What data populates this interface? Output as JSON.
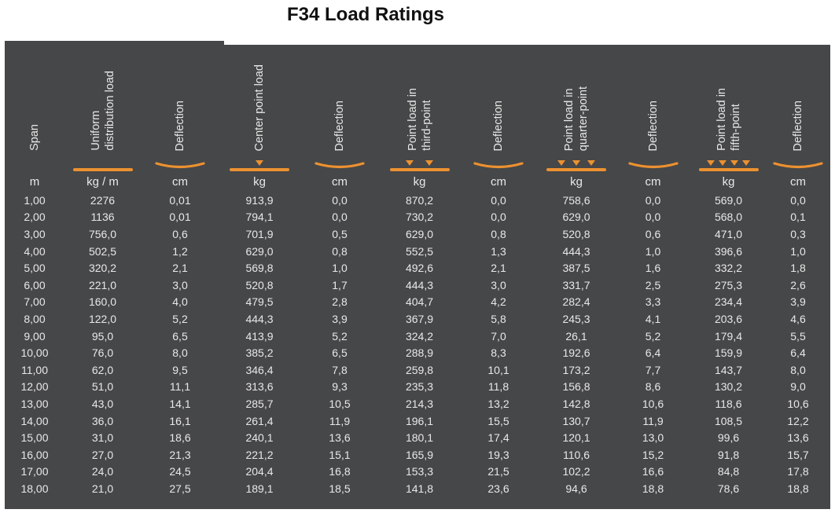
{
  "title": "F34 Load Ratings",
  "colors": {
    "table_bg": "#464748",
    "accent_orange": "#ec9130",
    "text_light": "#e8e8e8",
    "title_color": "#111111"
  },
  "table": {
    "columns": [
      {
        "label_display": "Span",
        "unit": "m",
        "symbol": "none",
        "triangles": 0
      },
      {
        "label_display": "Uniform\ndistribution load",
        "unit": "kg / m",
        "symbol": "bar",
        "triangles": 0
      },
      {
        "label_display": "Deflection",
        "unit": "cm",
        "symbol": "arc",
        "triangles": 0
      },
      {
        "label_display": "Center point load",
        "unit": "kg",
        "symbol": "bar",
        "triangles": 1
      },
      {
        "label_display": "Deflection",
        "unit": "cm",
        "symbol": "arc",
        "triangles": 0
      },
      {
        "label_display": "Point load in\nthird-point",
        "unit": "kg",
        "symbol": "bar",
        "triangles": 2
      },
      {
        "label_display": "Deflection",
        "unit": "cm",
        "symbol": "arc",
        "triangles": 0
      },
      {
        "label_display": "Point load in\nquarter-point",
        "unit": "kg",
        "symbol": "bar",
        "triangles": 3
      },
      {
        "label_display": "Deflection",
        "unit": "cm",
        "symbol": "arc",
        "triangles": 0
      },
      {
        "label_display": "Point load in\nfifth-point",
        "unit": "kg",
        "symbol": "bar",
        "triangles": 4
      },
      {
        "label_display": "Deflection",
        "unit": "cm",
        "symbol": "arc",
        "triangles": 0
      }
    ],
    "rows": [
      [
        "1,00",
        "2276",
        "0,01",
        "913,9",
        "0,0",
        "870,2",
        "0,0",
        "758,6",
        "0,0",
        "569,0",
        "0,0"
      ],
      [
        "2,00",
        "1136",
        "0,01",
        "794,1",
        "0,0",
        "730,2",
        "0,0",
        "629,0",
        "0,0",
        "568,0",
        "0,1"
      ],
      [
        "3,00",
        "756,0",
        "0,6",
        "701,9",
        "0,5",
        "629,0",
        "0,8",
        "520,8",
        "0,6",
        "471,0",
        "0,3"
      ],
      [
        "4,00",
        "502,5",
        "1,2",
        "629,0",
        "0,8",
        "552,5",
        "1,3",
        "444,3",
        "1,0",
        "396,6",
        "1,0"
      ],
      [
        "5,00",
        "320,2",
        "2,1",
        "569,8",
        "1,0",
        "492,6",
        "2,1",
        "387,5",
        "1,6",
        "332,2",
        "1,8"
      ],
      [
        "6,00",
        "221,0",
        "3,0",
        "520,8",
        "1,7",
        "444,3",
        "3,0",
        "331,7",
        "2,5",
        "275,3",
        "2,6"
      ],
      [
        "7,00",
        "160,0",
        "4,0",
        "479,5",
        "2,8",
        "404,7",
        "4,2",
        "282,4",
        "3,3",
        "234,4",
        "3,9"
      ],
      [
        "8,00",
        "122,0",
        "5,2",
        "444,3",
        "3,9",
        "367,9",
        "5,8",
        "245,3",
        "4,1",
        "203,6",
        "4,6"
      ],
      [
        "9,00",
        "95,0",
        "6,5",
        "413,9",
        "5,2",
        "324,2",
        "7,0",
        "26,1",
        "5,2",
        "179,4",
        "5,5"
      ],
      [
        "10,00",
        "76,0",
        "8,0",
        "385,2",
        "6,5",
        "288,9",
        "8,3",
        "192,6",
        "6,4",
        "159,9",
        "6,4"
      ],
      [
        "11,00",
        "62,0",
        "9,5",
        "346,4",
        "7,8",
        "259,8",
        "10,1",
        "173,2",
        "7,7",
        "143,7",
        "8,0"
      ],
      [
        "12,00",
        "51,0",
        "11,1",
        "313,6",
        "9,3",
        "235,3",
        "11,8",
        "156,8",
        "8,6",
        "130,2",
        "9,0"
      ],
      [
        "13,00",
        "43,0",
        "14,1",
        "285,7",
        "10,5",
        "214,3",
        "13,2",
        "142,8",
        "10,6",
        "118,6",
        "10,6"
      ],
      [
        "14,00",
        "36,0",
        "16,1",
        "261,4",
        "11,9",
        "196,1",
        "15,5",
        "130,7",
        "11,9",
        "108,5",
        "12,2"
      ],
      [
        "15,00",
        "31,0",
        "18,6",
        "240,1",
        "13,6",
        "180,1",
        "17,4",
        "120,1",
        "13,0",
        "99,6",
        "13,6"
      ],
      [
        "16,00",
        "27,0",
        "21,3",
        "221,2",
        "15,1",
        "165,9",
        "19,3",
        "110,6",
        "15,2",
        "91,8",
        "15,7"
      ],
      [
        "17,00",
        "24,0",
        "24,5",
        "204,4",
        "16,8",
        "153,3",
        "21,5",
        "102,2",
        "16,6",
        "84,8",
        "17,8"
      ],
      [
        "18,00",
        "21,0",
        "27,5",
        "189,1",
        "18,5",
        "141,8",
        "23,6",
        "94,6",
        "18,8",
        "78,6",
        "18,8"
      ]
    ]
  }
}
